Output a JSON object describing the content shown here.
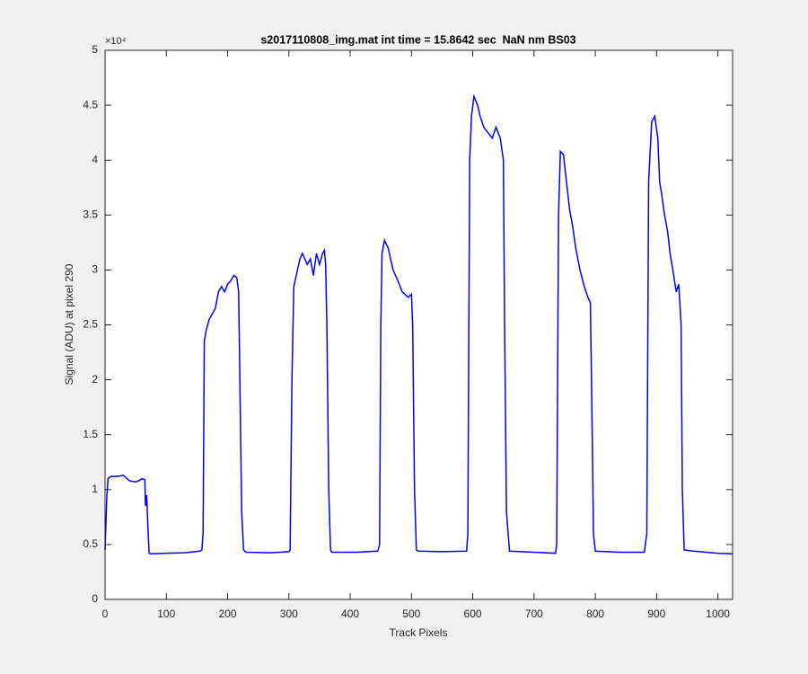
{
  "chart_data": {
    "type": "line",
    "title": "s2017110808_img.mat int time = 15.8642 sec  NaN nm BS03",
    "xlabel": "Track Pixels",
    "ylabel": "Signal (ADU) at pixel 290",
    "y_multiplier": "×10⁴",
    "color": "#0000ff",
    "xlim": [
      0,
      1024
    ],
    "ylim": [
      0,
      50000
    ],
    "xticks": [
      0,
      100,
      200,
      300,
      400,
      500,
      600,
      700,
      800,
      900,
      1000
    ],
    "yticks": [
      0,
      {
        "value": 5000,
        "label": "0.5"
      },
      {
        "value": 10000,
        "label": "1"
      },
      {
        "value": 15000,
        "label": "1.5"
      },
      {
        "value": 20000,
        "label": "2"
      },
      {
        "value": 25000,
        "label": "2.5"
      },
      {
        "value": 30000,
        "label": "3"
      },
      {
        "value": 35000,
        "label": "3.5"
      },
      {
        "value": 40000,
        "label": "4"
      },
      {
        "value": 45000,
        "label": "4.5"
      },
      {
        "value": 50000,
        "label": "5"
      }
    ],
    "x": [
      0,
      3,
      5,
      10,
      20,
      30,
      40,
      50,
      55,
      60,
      65,
      66,
      68,
      70,
      72,
      75,
      100,
      130,
      155,
      158,
      160,
      162,
      165,
      170,
      175,
      180,
      185,
      190,
      195,
      200,
      205,
      210,
      215,
      218,
      220,
      223,
      226,
      230,
      270,
      300,
      302,
      305,
      308,
      312,
      318,
      322,
      330,
      335,
      340,
      345,
      350,
      355,
      358,
      360,
      362,
      365,
      368,
      370,
      410,
      445,
      448,
      450,
      452,
      456,
      462,
      470,
      478,
      485,
      495,
      500,
      502,
      505,
      508,
      512,
      550,
      590,
      592,
      595,
      598,
      602,
      608,
      612,
      618,
      625,
      632,
      638,
      645,
      650,
      652,
      655,
      660,
      700,
      735,
      737,
      740,
      743,
      748,
      753,
      758,
      763,
      768,
      775,
      782,
      788,
      792,
      795,
      797,
      800,
      840,
      880,
      884,
      887,
      892,
      897,
      902,
      905,
      908,
      913,
      918,
      922,
      928,
      932,
      936,
      938,
      940,
      942,
      945,
      960,
      1000,
      1024
    ],
    "values": [
      4500,
      9500,
      11000,
      11200,
      11200,
      11300,
      10800,
      10700,
      10800,
      11000,
      10900,
      8500,
      9500,
      6500,
      4200,
      4150,
      4200,
      4250,
      4400,
      4500,
      6000,
      23500,
      24500,
      25500,
      26000,
      26500,
      28000,
      28500,
      28000,
      28700,
      29000,
      29500,
      29300,
      28000,
      20000,
      8000,
      4500,
      4300,
      4250,
      4350,
      4500,
      20000,
      28500,
      29500,
      31000,
      31500,
      30500,
      31000,
      29500,
      31500,
      30500,
      31500,
      31800,
      30500,
      25000,
      10000,
      4500,
      4300,
      4300,
      4400,
      5000,
      25000,
      31500,
      32700,
      32000,
      30000,
      29000,
      28000,
      27500,
      27800,
      25000,
      10000,
      4500,
      4400,
      4350,
      4400,
      6000,
      40000,
      44000,
      45800,
      45000,
      44000,
      43000,
      42500,
      42000,
      43000,
      42000,
      40000,
      25000,
      8000,
      4400,
      4300,
      4200,
      5000,
      35000,
      40800,
      40500,
      38000,
      35500,
      34000,
      32000,
      30000,
      28500,
      27500,
      27000,
      15000,
      6000,
      4400,
      4300,
      4300,
      6000,
      38000,
      43500,
      44000,
      42000,
      38000,
      37000,
      35000,
      33500,
      31500,
      29500,
      28000,
      28700,
      27000,
      25000,
      10000,
      4500,
      4400,
      4200,
      4150
    ]
  }
}
